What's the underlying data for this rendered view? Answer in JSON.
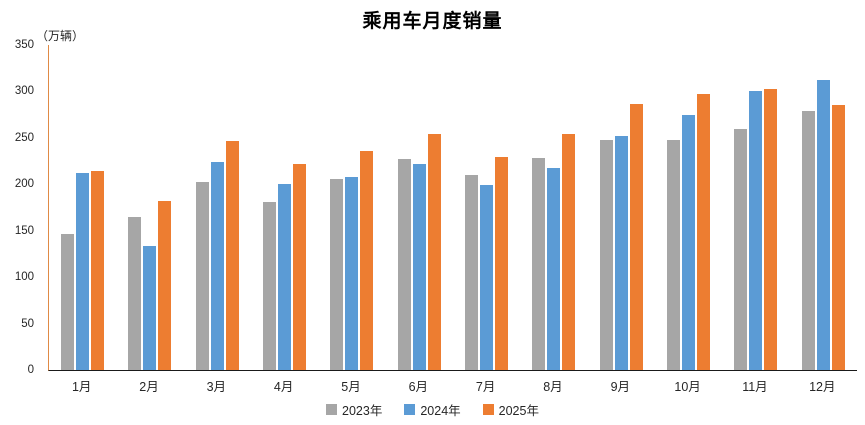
{
  "title": "乘用车月度销量",
  "y_axis_unit": "（万辆）",
  "chart_data": {
    "type": "bar",
    "title": "乘用车月度销量",
    "xlabel": "",
    "ylabel": "（万辆）",
    "ylim": [
      0,
      350
    ],
    "yticks": [
      0,
      50,
      100,
      150,
      200,
      250,
      300,
      350
    ],
    "grid": false,
    "legend_position": "bottom",
    "categories": [
      "1月",
      "2月",
      "3月",
      "4月",
      "5月",
      "6月",
      "7月",
      "8月",
      "9月",
      "10月",
      "11月",
      "12月"
    ],
    "series": [
      {
        "name": "2023年",
        "color": "#A6A6A6",
        "values": [
          147,
          165,
          202,
          181,
          206,
          227,
          210,
          228,
          248,
          248,
          260,
          279
        ]
      },
      {
        "name": "2024年",
        "color": "#5B9BD5",
        "values": [
          212,
          134,
          224,
          200,
          208,
          222,
          199,
          218,
          252,
          275,
          300,
          312
        ]
      },
      {
        "name": "2025年",
        "color": "#ED7D31",
        "values": [
          214,
          182,
          247,
          222,
          236,
          254,
          229,
          254,
          287,
          297,
          303,
          285
        ]
      }
    ]
  }
}
